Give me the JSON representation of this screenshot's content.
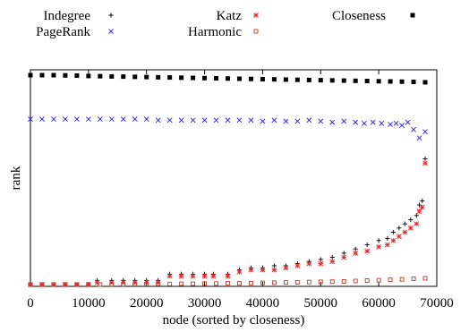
{
  "chart_data": {
    "type": "scatter",
    "xlabel": "node (sorted by closeness)",
    "ylabel": "rank",
    "xlim": [
      0,
      70000
    ],
    "ylim": [
      0,
      1
    ],
    "xticks": [
      "0",
      "10000",
      "20000",
      "30000",
      "40000",
      "50000",
      "60000",
      "70000"
    ],
    "yticks": [],
    "grid": false,
    "legend_position": "top, outside plot",
    "series": [
      {
        "name": "Indegree",
        "marker": "plus",
        "color": "#000000",
        "x": [
          0,
          2000,
          4000,
          6000,
          8000,
          10000,
          11500,
          14000,
          16000,
          18000,
          20000,
          22000,
          24000,
          26000,
          28000,
          30000,
          31500,
          34000,
          36000,
          38000,
          40000,
          42000,
          44000,
          46000,
          48000,
          50000,
          52000,
          54000,
          56000,
          58000,
          60000,
          61500,
          62500,
          63500,
          64500,
          65500,
          66500,
          67000,
          67500,
          68000
        ],
        "y": [
          0.0,
          0.0,
          0.0,
          0.0,
          0.0,
          0.0,
          0.02,
          0.02,
          0.02,
          0.02,
          0.02,
          0.02,
          0.05,
          0.05,
          0.05,
          0.05,
          0.05,
          0.05,
          0.07,
          0.08,
          0.08,
          0.09,
          0.09,
          0.1,
          0.11,
          0.12,
          0.13,
          0.15,
          0.17,
          0.19,
          0.21,
          0.22,
          0.25,
          0.27,
          0.29,
          0.31,
          0.33,
          0.38,
          0.4,
          0.6
        ]
      },
      {
        "name": "PageRank",
        "marker": "x",
        "color": "#1f1fff",
        "x": [
          0,
          2000,
          4000,
          6000,
          8000,
          10000,
          12000,
          14000,
          16000,
          18000,
          20000,
          22000,
          24000,
          26000,
          28000,
          30000,
          32000,
          34000,
          36000,
          38000,
          40000,
          42000,
          44000,
          46000,
          48000,
          50000,
          52000,
          54000,
          56000,
          57500,
          59000,
          60500,
          62000,
          63000,
          64000,
          65000,
          66000,
          67000,
          68000
        ],
        "y": [
          0.79,
          0.79,
          0.79,
          0.79,
          0.79,
          0.79,
          0.79,
          0.79,
          0.79,
          0.79,
          0.79,
          0.785,
          0.785,
          0.785,
          0.785,
          0.785,
          0.785,
          0.785,
          0.785,
          0.785,
          0.78,
          0.785,
          0.78,
          0.78,
          0.785,
          0.78,
          0.775,
          0.78,
          0.775,
          0.77,
          0.775,
          0.77,
          0.765,
          0.77,
          0.76,
          0.775,
          0.74,
          0.7,
          0.73
        ]
      },
      {
        "name": "Katz",
        "marker": "asterisk",
        "color": "#e8262b",
        "x": [
          0,
          2000,
          4000,
          6000,
          8000,
          10000,
          11500,
          14000,
          16000,
          18000,
          20000,
          22000,
          24000,
          26000,
          28000,
          30000,
          31500,
          34000,
          36000,
          38000,
          40000,
          42000,
          44000,
          46000,
          48000,
          50000,
          52000,
          54000,
          56000,
          58000,
          60000,
          61500,
          62500,
          63500,
          64500,
          65500,
          66500,
          67000,
          67500,
          68000
        ],
        "y": [
          0.0,
          0.0,
          0.0,
          0.0,
          0.0,
          0.0,
          0.01,
          0.01,
          0.01,
          0.01,
          0.01,
          0.01,
          0.04,
          0.04,
          0.04,
          0.04,
          0.04,
          0.04,
          0.06,
          0.07,
          0.07,
          0.07,
          0.08,
          0.09,
          0.1,
          0.1,
          0.11,
          0.13,
          0.15,
          0.16,
          0.18,
          0.19,
          0.21,
          0.23,
          0.25,
          0.27,
          0.29,
          0.35,
          0.37,
          0.58
        ]
      },
      {
        "name": "Closeness",
        "marker": "filled-square",
        "color": "#000000",
        "x": [
          0,
          2000,
          4000,
          6000,
          8000,
          10000,
          12000,
          14000,
          16000,
          18000,
          20000,
          22000,
          24000,
          26000,
          28000,
          30000,
          32000,
          34000,
          36000,
          38000,
          40000,
          42000,
          44000,
          46000,
          48000,
          50000,
          52000,
          54000,
          56000,
          58000,
          60000,
          62000,
          64000,
          66000,
          68000
        ],
        "y": [
          1.0,
          1.0,
          1.0,
          0.999,
          0.998,
          0.996,
          0.995,
          0.994,
          0.993,
          0.992,
          0.991,
          0.99,
          0.989,
          0.988,
          0.987,
          0.986,
          0.985,
          0.984,
          0.983,
          0.982,
          0.981,
          0.98,
          0.979,
          0.978,
          0.977,
          0.976,
          0.975,
          0.974,
          0.973,
          0.972,
          0.971,
          0.97,
          0.969,
          0.968,
          0.966
        ]
      },
      {
        "name": "Harmonic",
        "marker": "open-square",
        "color": "#c0392b",
        "x": [
          0,
          2000,
          4000,
          6000,
          8000,
          10000,
          12000,
          14000,
          16000,
          18000,
          20000,
          22000,
          24000,
          26000,
          28000,
          30000,
          32000,
          34000,
          36000,
          38000,
          40000,
          42000,
          44000,
          46000,
          48000,
          50000,
          52000,
          54000,
          56000,
          58000,
          60000,
          62000,
          64000,
          66000,
          68000
        ],
        "y": [
          0.0,
          0.0,
          0.0,
          0.0,
          0.0,
          0.0,
          0.0,
          0.001,
          0.001,
          0.002,
          0.002,
          0.003,
          0.003,
          0.004,
          0.004,
          0.005,
          0.005,
          0.006,
          0.006,
          0.007,
          0.008,
          0.009,
          0.01,
          0.011,
          0.012,
          0.013,
          0.014,
          0.015,
          0.017,
          0.019,
          0.021,
          0.023,
          0.025,
          0.028,
          0.03
        ]
      }
    ]
  }
}
